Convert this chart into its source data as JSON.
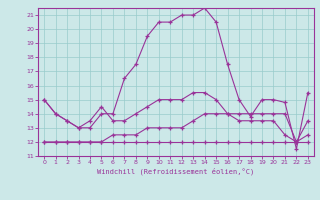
{
  "title": "",
  "xlabel": "Windchill (Refroidissement éolien,°C)",
  "xlim": [
    -0.5,
    23.5
  ],
  "ylim": [
    11,
    21.5
  ],
  "xticks": [
    0,
    1,
    2,
    3,
    4,
    5,
    6,
    7,
    8,
    9,
    10,
    11,
    12,
    13,
    14,
    15,
    16,
    17,
    18,
    19,
    20,
    21,
    22,
    23
  ],
  "yticks": [
    11,
    12,
    13,
    14,
    15,
    16,
    17,
    18,
    19,
    20,
    21
  ],
  "bg_color": "#cce8e8",
  "line_color": "#993399",
  "grid_color": "#99cccc",
  "line1_y": [
    15,
    14,
    13.5,
    13,
    13.5,
    14.5,
    13.5,
    13.5,
    14,
    14.5,
    15,
    15,
    15,
    15.5,
    15.5,
    15,
    14,
    13.5,
    13.5,
    13.5,
    13.5,
    12.5,
    12.0,
    13.5
  ],
  "line2_y": [
    15,
    14,
    13.5,
    13,
    13,
    14,
    14,
    16.5,
    17.5,
    19.5,
    20.5,
    20.5,
    21,
    21,
    21.5,
    20.5,
    17.5,
    15,
    13.8,
    15,
    15,
    14.8,
    11.5,
    15.5
  ],
  "line3_y": [
    12,
    12,
    12,
    12,
    12,
    12,
    12.5,
    12.5,
    12.5,
    13,
    13,
    13,
    13,
    13.5,
    14,
    14,
    14,
    14,
    14,
    14,
    14,
    14,
    12,
    12.5
  ],
  "line4_y": [
    12,
    12,
    12,
    12,
    12,
    12,
    12,
    12,
    12,
    12,
    12,
    12,
    12,
    12,
    12,
    12,
    12,
    12,
    12,
    12,
    12,
    12,
    12,
    12
  ]
}
